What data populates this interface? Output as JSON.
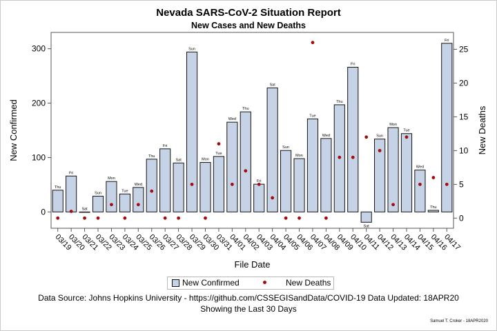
{
  "header": {
    "title": "Nevada SARS-CoV-2 Situation Report",
    "subtitle": "New Cases and New Deaths"
  },
  "footer": {
    "source": "Data Source: Johns Hopkins University - https://github.com/CSSEGISandData/COVID-19 Data Updated: 18APR20",
    "range": "Showing the Last 30 Days",
    "credit": "Samuel T. Croker - 18APR2020"
  },
  "legend": {
    "confirmed": "New Confirmed",
    "deaths": "New Deaths"
  },
  "colors": {
    "bar_fill": "#c6d3e6",
    "bar_stroke": "#111111",
    "death_marker": "#a50d0d",
    "axis": "#555555"
  },
  "chart_data": {
    "type": "bar",
    "title": "Nevada SARS-CoV-2 Situation Report",
    "subtitle": "New Cases and New Deaths",
    "xlabel": "File Date",
    "ylabel": "New Confirmed",
    "y2label": "New Deaths",
    "ylim": [
      -30,
      330
    ],
    "yticks": [
      0,
      100,
      200,
      300
    ],
    "y2lim": [
      -1.5,
      27.5
    ],
    "y2ticks": [
      0,
      5,
      10,
      15,
      20,
      25
    ],
    "categories": [
      "03/19",
      "03/20",
      "03/21",
      "03/22",
      "03/23",
      "03/24",
      "03/25",
      "03/26",
      "03/27",
      "03/28",
      "03/29",
      "03/30",
      "03/31",
      "04/01",
      "04/02",
      "04/03",
      "04/04",
      "04/05",
      "04/06",
      "04/07",
      "04/08",
      "04/09",
      "04/10",
      "04/11",
      "04/12",
      "04/13",
      "04/14",
      "04/15",
      "04/16",
      "04/17"
    ],
    "weekdays": [
      "Thu",
      "Fri",
      "Sat",
      "Sun",
      "Mon",
      "Tue",
      "Wed",
      "Thu",
      "Fri",
      "Sat",
      "Sun",
      "Mon",
      "Tue",
      "Wed",
      "Thu",
      "Fri",
      "Sat",
      "Sun",
      "Mon",
      "Tue",
      "Wed",
      "Thu",
      "Fri",
      "Sat",
      "Sun",
      "Mon",
      "Tue",
      "Wed",
      "Thu",
      "Fri"
    ],
    "series": [
      {
        "name": "New Confirmed",
        "axis": "left",
        "kind": "bar",
        "values": [
          40,
          66,
          0,
          29,
          56,
          33,
          45,
          97,
          116,
          90,
          294,
          91,
          102,
          165,
          184,
          51,
          228,
          113,
          98,
          171,
          135,
          197,
          266,
          -19,
          134,
          155,
          144,
          77,
          3,
          310
        ]
      },
      {
        "name": "New Deaths",
        "axis": "right",
        "kind": "marker",
        "values": [
          0,
          1,
          0,
          0,
          2,
          0,
          2,
          4,
          0,
          0,
          5,
          0,
          11,
          5,
          7,
          5,
          3,
          0,
          0,
          26,
          0,
          9,
          9,
          12,
          10,
          2,
          12,
          5,
          6,
          5
        ]
      }
    ]
  }
}
